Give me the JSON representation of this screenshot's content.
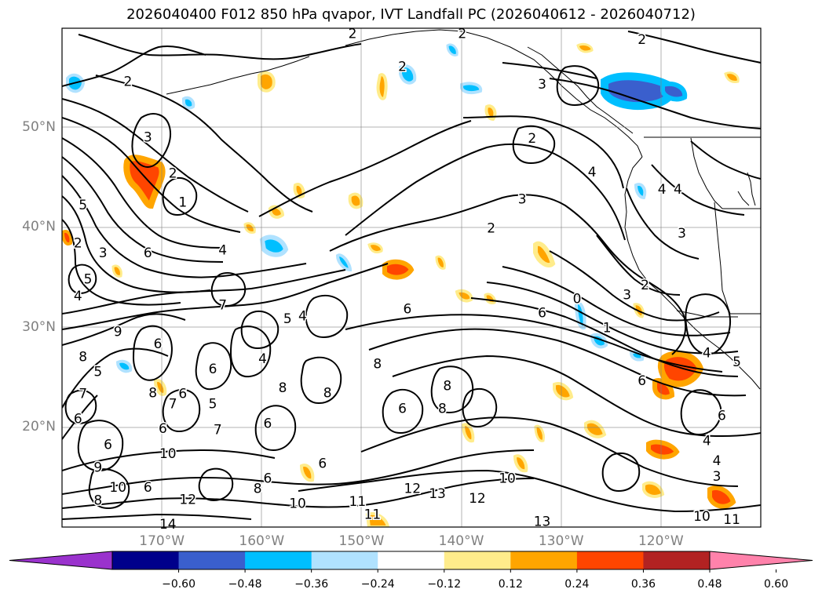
{
  "title": "2026040400 F012 850 hPa qvapor, IVT Landfall PC (2026040612 - 2026040712)",
  "lat_labels": [
    {
      "text": "50°N",
      "lat": 50
    },
    {
      "text": "40°N",
      "lat": 40
    },
    {
      "text": "30°N",
      "lat": 30
    },
    {
      "text": "20°N",
      "lat": 20
    }
  ],
  "lon_labels": [
    {
      "text": "170°W",
      "lon": -170
    },
    {
      "text": "160°W",
      "lon": -160
    },
    {
      "text": "150°W",
      "lon": -150
    },
    {
      "text": "140°W",
      "lon": -140
    },
    {
      "text": "130°W",
      "lon": -130
    },
    {
      "text": "120°W",
      "lon": -120
    }
  ],
  "colorbar": {
    "colors": [
      "#9a32cd",
      "#00008b",
      "#3a5fcd",
      "#00bfff",
      "#b0e2ff",
      "#ffffff",
      "#ffec8b",
      "#ffa500",
      "#ff4500",
      "#b22222",
      "#ff82ab"
    ],
    "ticks": [
      "−0.60",
      "−0.48",
      "−0.36",
      "−0.24",
      "−0.12",
      "0.12",
      "0.24",
      "0.36",
      "0.48",
      "0.60"
    ]
  },
  "contour_labels": [
    {
      "text": "2",
      "lon": -173.4,
      "lat": 54.7
    },
    {
      "text": "2",
      "lon": -145.9,
      "lat": 56.2
    },
    {
      "text": "2",
      "lon": -139.9,
      "lat": 59.5
    },
    {
      "text": "2",
      "lon": -150.9,
      "lat": 59.5
    },
    {
      "text": "2",
      "lon": -121.9,
      "lat": 58.9
    },
    {
      "text": "3",
      "lon": -131.9,
      "lat": 54.4
    },
    {
      "text": "2",
      "lon": -132.9,
      "lat": 49.0
    },
    {
      "text": "3",
      "lon": -171.4,
      "lat": 49.1
    },
    {
      "text": "2",
      "lon": -168.9,
      "lat": 45.5
    },
    {
      "text": "1",
      "lon": -167.9,
      "lat": 42.6
    },
    {
      "text": "3",
      "lon": -133.9,
      "lat": 42.9
    },
    {
      "text": "4",
      "lon": -126.9,
      "lat": 45.6
    },
    {
      "text": "4",
      "lon": -119.9,
      "lat": 43.9
    },
    {
      "text": "4",
      "lon": -118.3,
      "lat": 43.9
    },
    {
      "text": "3",
      "lon": -117.9,
      "lat": 39.5
    },
    {
      "text": "2",
      "lon": -137.0,
      "lat": 40.0
    },
    {
      "text": "5",
      "lon": -177.9,
      "lat": 42.3
    },
    {
      "text": "2",
      "lon": -178.4,
      "lat": 38.5
    },
    {
      "text": "3",
      "lon": -175.9,
      "lat": 37.5
    },
    {
      "text": "6",
      "lon": -171.4,
      "lat": 37.5
    },
    {
      "text": "4",
      "lon": -163.9,
      "lat": 37.8
    },
    {
      "text": "5",
      "lon": -177.4,
      "lat": 34.9
    },
    {
      "text": "4",
      "lon": -178.4,
      "lat": 33.2
    },
    {
      "text": "7",
      "lon": -163.9,
      "lat": 32.3
    },
    {
      "text": "5",
      "lon": -157.4,
      "lat": 30.9
    },
    {
      "text": "4",
      "lon": -155.9,
      "lat": 31.2
    },
    {
      "text": "6",
      "lon": -145.4,
      "lat": 31.9
    },
    {
      "text": "6",
      "lon": -131.9,
      "lat": 31.5
    },
    {
      "text": "9",
      "lon": -174.4,
      "lat": 29.6
    },
    {
      "text": "8",
      "lon": -177.9,
      "lat": 27.1
    },
    {
      "text": "6",
      "lon": -170.4,
      "lat": 28.4
    },
    {
      "text": "6",
      "lon": -164.9,
      "lat": 25.9
    },
    {
      "text": "4",
      "lon": -159.9,
      "lat": 26.9
    },
    {
      "text": "8",
      "lon": -148.4,
      "lat": 26.4
    },
    {
      "text": "7",
      "lon": -177.9,
      "lat": 23.4
    },
    {
      "text": "5",
      "lon": -176.4,
      "lat": 25.6
    },
    {
      "text": "8",
      "lon": -170.9,
      "lat": 23.5
    },
    {
      "text": "7",
      "lon": -168.9,
      "lat": 22.4
    },
    {
      "text": "6",
      "lon": -167.9,
      "lat": 23.4
    },
    {
      "text": "5",
      "lon": -164.9,
      "lat": 22.4
    },
    {
      "text": "8",
      "lon": -157.9,
      "lat": 24.0
    },
    {
      "text": "8",
      "lon": -153.4,
      "lat": 23.5
    },
    {
      "text": "6",
      "lon": -145.9,
      "lat": 21.9
    },
    {
      "text": "8",
      "lon": -141.9,
      "lat": 21.9
    },
    {
      "text": "8",
      "lon": -141.4,
      "lat": 24.2
    },
    {
      "text": "6",
      "lon": -178.4,
      "lat": 20.9
    },
    {
      "text": "6",
      "lon": -175.4,
      "lat": 18.3
    },
    {
      "text": "6",
      "lon": -169.9,
      "lat": 19.9
    },
    {
      "text": "10",
      "lon": -169.4,
      "lat": 17.4
    },
    {
      "text": "7",
      "lon": -164.4,
      "lat": 19.8
    },
    {
      "text": "6",
      "lon": -159.4,
      "lat": 20.4
    },
    {
      "text": "9",
      "lon": -176.4,
      "lat": 16.0
    },
    {
      "text": "10",
      "lon": -174.4,
      "lat": 14.0
    },
    {
      "text": "8",
      "lon": -176.4,
      "lat": 12.7
    },
    {
      "text": "6",
      "lon": -171.4,
      "lat": 14.0
    },
    {
      "text": "12",
      "lon": -167.4,
      "lat": 12.8
    },
    {
      "text": "6",
      "lon": -159.4,
      "lat": 14.9
    },
    {
      "text": "8",
      "lon": -160.4,
      "lat": 13.9
    },
    {
      "text": "10",
      "lon": -156.4,
      "lat": 12.4
    },
    {
      "text": "6",
      "lon": -153.9,
      "lat": 16.4
    },
    {
      "text": "11",
      "lon": -150.4,
      "lat": 12.6
    },
    {
      "text": "12",
      "lon": -144.9,
      "lat": 13.9
    },
    {
      "text": "13",
      "lon": -142.4,
      "lat": 13.4
    },
    {
      "text": "11",
      "lon": -148.9,
      "lat": 11.3
    },
    {
      "text": "12",
      "lon": -138.4,
      "lat": 12.9
    },
    {
      "text": "10",
      "lon": -135.4,
      "lat": 14.9
    },
    {
      "text": "13",
      "lon": -131.9,
      "lat": 10.6
    },
    {
      "text": "14",
      "lon": -169.4,
      "lat": 10.3
    },
    {
      "text": "0",
      "lon": -128.4,
      "lat": 32.9
    },
    {
      "text": "3",
      "lon": -123.4,
      "lat": 33.3
    },
    {
      "text": "2",
      "lon": -121.6,
      "lat": 34.3
    },
    {
      "text": "1",
      "lon": -125.4,
      "lat": 30.0
    },
    {
      "text": "4",
      "lon": -115.4,
      "lat": 27.5
    },
    {
      "text": "5",
      "lon": -112.4,
      "lat": 26.6
    },
    {
      "text": "6",
      "lon": -121.9,
      "lat": 24.7
    },
    {
      "text": "6",
      "lon": -113.9,
      "lat": 21.2
    },
    {
      "text": "4",
      "lon": -115.4,
      "lat": 18.7
    },
    {
      "text": "4",
      "lon": -114.4,
      "lat": 16.7
    },
    {
      "text": "3",
      "lon": -114.4,
      "lat": 15.1
    },
    {
      "text": "10",
      "lon": -115.9,
      "lat": 11.1
    },
    {
      "text": "11",
      "lon": -112.9,
      "lat": 10.8
    }
  ]
}
